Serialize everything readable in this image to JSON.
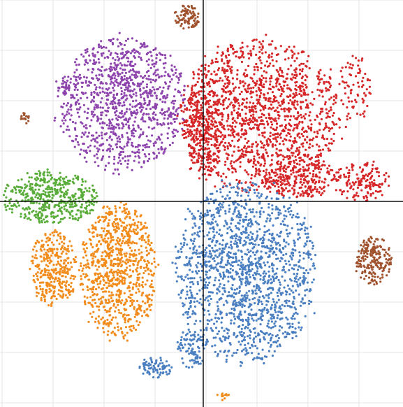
{
  "chart_data": {
    "type": "scatter",
    "title": "",
    "xlabel": "",
    "ylabel": "",
    "xlim": [
      -100,
      100
    ],
    "ylim": [
      -100,
      100
    ],
    "grid": true,
    "legend": "none",
    "axes_through_origin": true,
    "series": [
      {
        "color": "#d62728",
        "clusters": [
          {
            "cx": 28,
            "cy": 42,
            "rx": 40,
            "ry": 38,
            "n": 1500
          },
          {
            "cx": 0,
            "cy": 35,
            "rx": 10,
            "ry": 25,
            "n": 300
          },
          {
            "cx": 48,
            "cy": 12,
            "rx": 18,
            "ry": 10,
            "n": 250
          },
          {
            "cx": 78,
            "cy": 10,
            "rx": 14,
            "ry": 10,
            "n": 160
          },
          {
            "cx": 75,
            "cy": 55,
            "rx": 8,
            "ry": 18,
            "n": 80
          }
        ]
      },
      {
        "color": "#8e44ad",
        "clusters": [
          {
            "cx": -40,
            "cy": 48,
            "rx": 32,
            "ry": 33,
            "n": 1100
          },
          {
            "cx": -69,
            "cy": 56,
            "rx": 3,
            "ry": 4,
            "n": 25
          }
        ]
      },
      {
        "color": "#5aad3a",
        "clusters": [
          {
            "cx": -75,
            "cy": 2,
            "rx": 24,
            "ry": 13,
            "n": 500
          }
        ]
      },
      {
        "color": "#f28c1c",
        "clusters": [
          {
            "cx": -42,
            "cy": -34,
            "rx": 19,
            "ry": 34,
            "n": 900
          },
          {
            "cx": -74,
            "cy": -33,
            "rx": 12,
            "ry": 19,
            "n": 350
          }
        ]
      },
      {
        "color": "#4a7fc1",
        "clusters": [
          {
            "cx": 21,
            "cy": -35,
            "rx": 35,
            "ry": 45,
            "n": 1600
          },
          {
            "cx": -6,
            "cy": -73,
            "rx": 8,
            "ry": 9,
            "n": 90
          },
          {
            "cx": -23,
            "cy": -82,
            "rx": 10,
            "ry": 5,
            "n": 80
          }
        ]
      },
      {
        "color": "#a0522d",
        "clusters": [
          {
            "cx": -8,
            "cy": 91,
            "rx": 6,
            "ry": 6,
            "n": 90
          },
          {
            "cx": 84,
            "cy": -29,
            "rx": 9,
            "ry": 12,
            "n": 200
          },
          {
            "cx": -88,
            "cy": 41,
            "rx": 2,
            "ry": 3,
            "n": 15
          }
        ]
      },
      {
        "color": "#f28c1c",
        "clusters": [
          {
            "cx": 10,
            "cy": -96,
            "rx": 3,
            "ry": 2,
            "n": 15
          }
        ]
      }
    ]
  }
}
